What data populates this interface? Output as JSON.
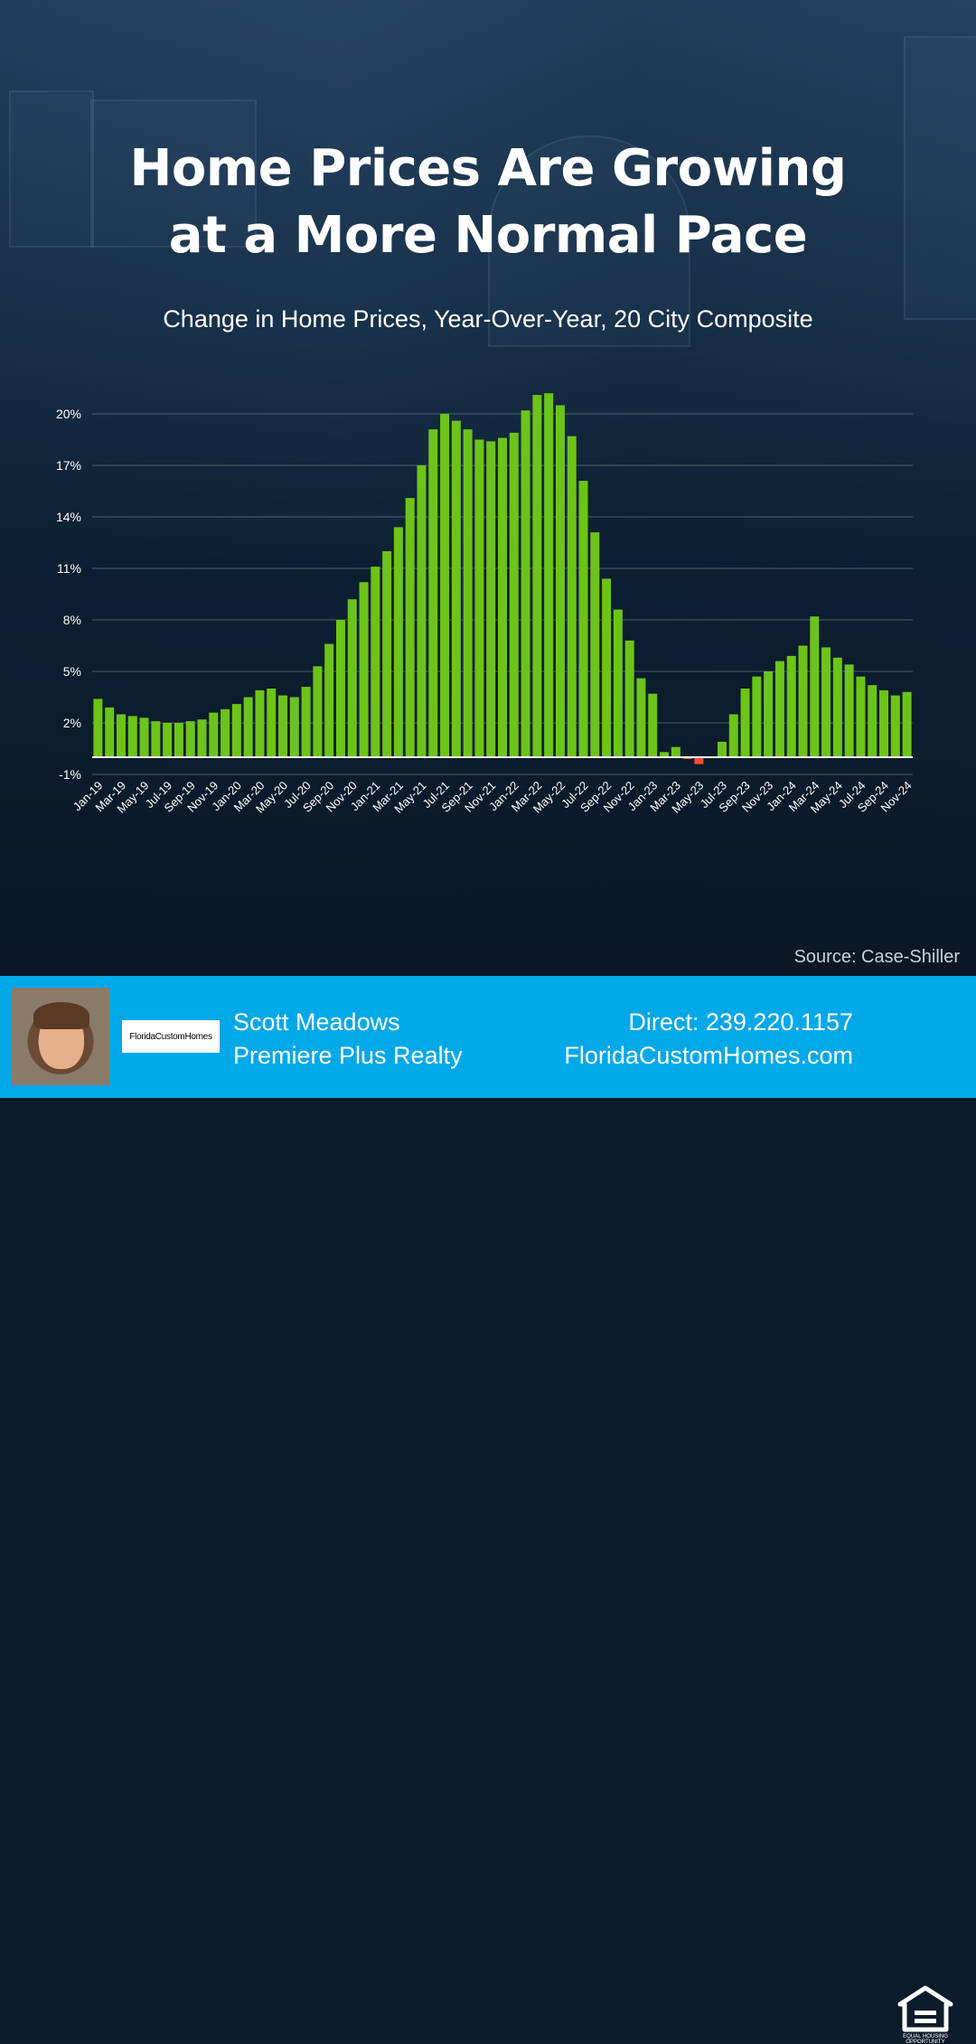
{
  "title_line1": "Home Prices Are Growing",
  "title_line2": "at a More Normal Pace",
  "subtitle": "Change in Home Prices, Year-Over-Year, 20 City Composite",
  "source": "Source: Case-Shiller",
  "footer": {
    "logo_text": "FloridaCustomHomes",
    "agent_name": "Scott Meadows",
    "brokerage": "Premiere Plus Realty",
    "phone": "Direct: 239.220.1157",
    "website": "FloridaCustomHomes.com",
    "badge_icon": "equal-housing-opportunity-icon",
    "badge_text": "EQUAL HOUSING OPPORTUNITY"
  },
  "colors": {
    "positive_bar": "#6cc419",
    "negative_bar": "#ff4d2e",
    "footer_bg": "#00a8e8"
  },
  "chart_data": {
    "type": "bar",
    "title": "Change in Home Prices, Year-Over-Year, 20 City Composite",
    "xlabel": "",
    "ylabel": "",
    "ylim": [
      -1,
      21.5
    ],
    "yticks": [
      -1,
      2,
      5,
      8,
      11,
      14,
      17,
      20
    ],
    "ytick_labels": [
      "-1%",
      "2%",
      "5%",
      "8%",
      "11%",
      "14%",
      "17%",
      "20%"
    ],
    "grid": true,
    "legend": "none",
    "xtick_labels": [
      "Jan-19",
      "Mar-19",
      "May-19",
      "Jul-19",
      "Sep-19",
      "Nov-19",
      "Jan-20",
      "Mar-20",
      "May-20",
      "Jul-20",
      "Sep-20",
      "Nov-20",
      "Jan-21",
      "Mar-21",
      "May-21",
      "Jul-21",
      "Sep-21",
      "Nov-21",
      "Jan-22",
      "Mar-22",
      "May-22",
      "Jul-22",
      "Sep-22",
      "Nov-22",
      "Jan-23",
      "Mar-23",
      "May-23",
      "Jul-23",
      "Sep-23",
      "Nov-23",
      "Jan-24",
      "Mar-24",
      "May-24",
      "Jul-24",
      "Sep-24",
      "Nov-24"
    ],
    "categories": [
      "Jan-19",
      "Feb-19",
      "Mar-19",
      "Apr-19",
      "May-19",
      "Jun-19",
      "Jul-19",
      "Aug-19",
      "Sep-19",
      "Oct-19",
      "Nov-19",
      "Dec-19",
      "Jan-20",
      "Feb-20",
      "Mar-20",
      "Apr-20",
      "May-20",
      "Jun-20",
      "Jul-20",
      "Aug-20",
      "Sep-20",
      "Oct-20",
      "Nov-20",
      "Dec-20",
      "Jan-21",
      "Feb-21",
      "Mar-21",
      "Apr-21",
      "May-21",
      "Jun-21",
      "Jul-21",
      "Aug-21",
      "Sep-21",
      "Oct-21",
      "Nov-21",
      "Dec-21",
      "Jan-22",
      "Feb-22",
      "Mar-22",
      "Apr-22",
      "May-22",
      "Jun-22",
      "Jul-22",
      "Aug-22",
      "Sep-22",
      "Oct-22",
      "Nov-22",
      "Dec-22",
      "Jan-23",
      "Feb-23",
      "Mar-23",
      "Apr-23",
      "May-23",
      "Jun-23",
      "Jul-23",
      "Aug-23",
      "Sep-23",
      "Oct-23",
      "Nov-23",
      "Dec-23",
      "Jan-24",
      "Feb-24",
      "Mar-24",
      "Apr-24",
      "May-24",
      "Jun-24",
      "Jul-24",
      "Aug-24",
      "Sep-24",
      "Oct-24",
      "Nov-24"
    ],
    "values": [
      3.4,
      2.9,
      2.5,
      2.4,
      2.3,
      2.1,
      2.0,
      2.0,
      2.1,
      2.2,
      2.6,
      2.8,
      3.1,
      3.5,
      3.9,
      4.0,
      3.6,
      3.5,
      4.1,
      5.3,
      6.6,
      8.0,
      9.2,
      10.2,
      11.1,
      12.0,
      13.4,
      15.1,
      17.0,
      19.1,
      20.0,
      19.6,
      19.1,
      18.5,
      18.4,
      18.6,
      18.9,
      20.2,
      21.1,
      21.2,
      20.5,
      18.7,
      16.1,
      13.1,
      10.4,
      8.6,
      6.8,
      4.6,
      3.7,
      0.3,
      0.6,
      -0.1,
      -0.4,
      0.0,
      0.9,
      2.5,
      4.0,
      4.7,
      5.0,
      5.6,
      5.9,
      6.5,
      8.2,
      6.4,
      5.8,
      5.4,
      4.7,
      4.2,
      3.9,
      3.6,
      3.8
    ]
  }
}
